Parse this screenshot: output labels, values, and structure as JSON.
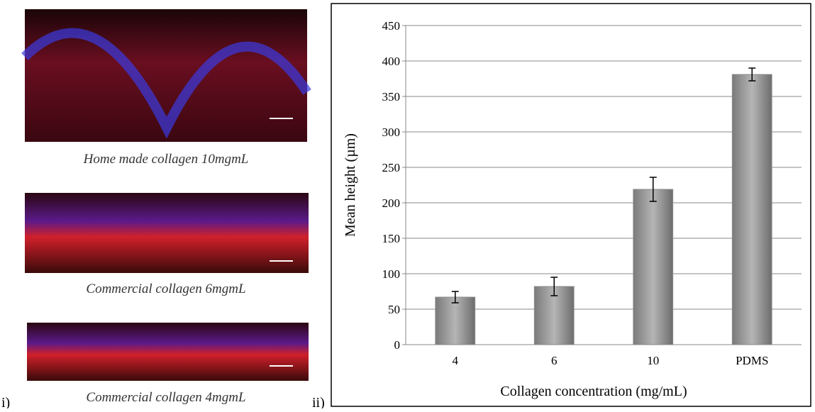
{
  "panel_labels": [
    "i)",
    "ii)"
  ],
  "images": [
    {
      "caption": "Home made collagen 10mgmL"
    },
    {
      "caption": "Commercial collagen 6mgmL"
    },
    {
      "caption": "Commercial collagen 4mgmL"
    }
  ],
  "chart_data": {
    "type": "bar",
    "categories": [
      "4",
      "6",
      "10",
      "PDMS"
    ],
    "values": [
      67,
      82,
      219,
      381
    ],
    "errors": [
      8,
      13,
      17,
      9
    ],
    "color": "#8c8c8c",
    "ylim": [
      0,
      450
    ],
    "yticks": [
      0,
      50,
      100,
      150,
      200,
      250,
      300,
      350,
      400,
      450
    ],
    "grid": true,
    "xlabel": "Collagen concentration (mg/mL)",
    "ylabel": "Mean height (µm)"
  }
}
